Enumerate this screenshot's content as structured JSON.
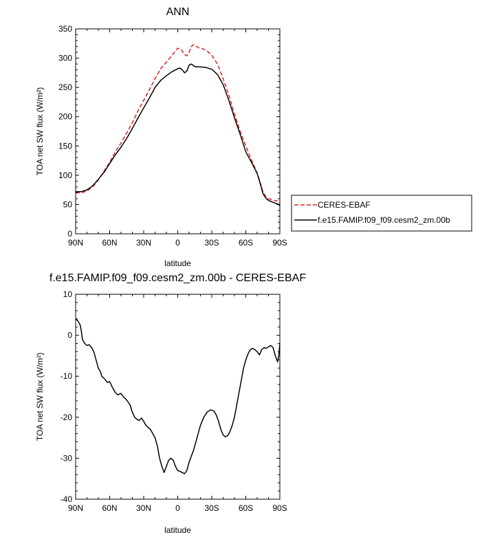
{
  "chart_data": [
    {
      "type": "line",
      "title": "ANN",
      "xlabel": "latitude",
      "ylabel": "TOA net SW flux (W/m²)",
      "xlim": [
        90,
        -90
      ],
      "ylim": [
        0,
        350
      ],
      "x_ticks": [
        90,
        60,
        30,
        0,
        -30,
        -60,
        -90
      ],
      "x_tick_labels": [
        "90N",
        "60N",
        "30N",
        "0",
        "30S",
        "60S",
        "90S"
      ],
      "y_ticks": [
        0,
        50,
        100,
        150,
        200,
        250,
        300,
        350
      ],
      "y_tick_labels": [
        "0",
        "50",
        "100",
        "150",
        "200",
        "250",
        "300",
        "350"
      ],
      "legend_position": "right, outside plot",
      "series": [
        {
          "name": "CERES-EBAF",
          "color": "#e02020",
          "dash": "dashed",
          "points": [
            [
              90,
              70
            ],
            [
              85,
              70
            ],
            [
              80,
              73
            ],
            [
              75,
              80
            ],
            [
              70,
              92
            ],
            [
              65,
              107
            ],
            [
              60,
              122
            ],
            [
              55,
              140
            ],
            [
              50,
              155
            ],
            [
              45,
              172
            ],
            [
              40,
              190
            ],
            [
              35,
              210
            ],
            [
              30,
              228
            ],
            [
              25,
              246
            ],
            [
              20,
              265
            ],
            [
              15,
              282
            ],
            [
              10,
              293
            ],
            [
              5,
              305
            ],
            [
              0,
              317
            ],
            [
              -3,
              315
            ],
            [
              -6,
              306
            ],
            [
              -8,
              304
            ],
            [
              -10,
              310
            ],
            [
              -12,
              320
            ],
            [
              -14,
              323
            ],
            [
              -16,
              321
            ],
            [
              -18,
              318
            ],
            [
              -22,
              316
            ],
            [
              -26,
              312
            ],
            [
              -30,
              305
            ],
            [
              -35,
              290
            ],
            [
              -40,
              265
            ],
            [
              -45,
              237
            ],
            [
              -50,
              205
            ],
            [
              -55,
              175
            ],
            [
              -60,
              150
            ],
            [
              -65,
              126
            ],
            [
              -70,
              104
            ],
            [
              -73,
              86
            ],
            [
              -75,
              72
            ],
            [
              -78,
              62
            ],
            [
              -80,
              60
            ],
            [
              -85,
              57
            ],
            [
              -88,
              56
            ],
            [
              -90,
              52
            ]
          ]
        },
        {
          "name": "f.e15.FAMIP.f09_f09.cesm2_zm.00b",
          "color": "#000000",
          "dash": "solid",
          "points": [
            [
              90,
              72
            ],
            [
              85,
              72
            ],
            [
              80,
              75
            ],
            [
              75,
              82
            ],
            [
              70,
              93
            ],
            [
              65,
              105
            ],
            [
              60,
              120
            ],
            [
              55,
              135
            ],
            [
              50,
              148
            ],
            [
              45,
              163
            ],
            [
              40,
              180
            ],
            [
              35,
              198
            ],
            [
              30,
              215
            ],
            [
              25,
              232
            ],
            [
              20,
              250
            ],
            [
              15,
              262
            ],
            [
              10,
              270
            ],
            [
              5,
              277
            ],
            [
              0,
              282
            ],
            [
              -2,
              283
            ],
            [
              -4,
              280
            ],
            [
              -6,
              275
            ],
            [
              -8,
              278
            ],
            [
              -10,
              288
            ],
            [
              -12,
              290
            ],
            [
              -14,
              287
            ],
            [
              -16,
              285
            ],
            [
              -20,
              285
            ],
            [
              -25,
              284
            ],
            [
              -30,
              281
            ],
            [
              -35,
              272
            ],
            [
              -40,
              255
            ],
            [
              -45,
              228
            ],
            [
              -50,
              198
            ],
            [
              -55,
              170
            ],
            [
              -60,
              140
            ],
            [
              -65,
              122
            ],
            [
              -70,
              103
            ],
            [
              -73,
              84
            ],
            [
              -75,
              69
            ],
            [
              -78,
              60
            ],
            [
              -80,
              57
            ],
            [
              -85,
              53
            ],
            [
              -88,
              51
            ],
            [
              -90,
              48
            ]
          ]
        }
      ]
    },
    {
      "type": "line",
      "title": "f.e15.FAMIP.f09_f09.cesm2_zm.00b - CERES-EBAF",
      "xlabel": "latitude",
      "ylabel": "TOA net SW flux (W/m²)",
      "xlim": [
        90,
        -90
      ],
      "ylim": [
        -40,
        10
      ],
      "x_ticks": [
        90,
        60,
        30,
        0,
        -30,
        -60,
        -90
      ],
      "x_tick_labels": [
        "90N",
        "60N",
        "30N",
        "0",
        "30S",
        "60S",
        "90S"
      ],
      "y_ticks": [
        -40,
        -30,
        -20,
        -10,
        0,
        10
      ],
      "y_tick_labels": [
        "-40",
        "-30",
        "-20",
        "-10",
        "0",
        "10"
      ],
      "series": [
        {
          "name": "",
          "color": "#000000",
          "dash": "solid",
          "points": [
            [
              90,
              4
            ],
            [
              88,
              3.5
            ],
            [
              86,
              2.5
            ],
            [
              85,
              1
            ],
            [
              84,
              -1
            ],
            [
              82,
              -2
            ],
            [
              80,
              -2.5
            ],
            [
              78,
              -2.3
            ],
            [
              76,
              -3
            ],
            [
              74,
              -4
            ],
            [
              73,
              -5
            ],
            [
              72,
              -6
            ],
            [
              70,
              -8
            ],
            [
              68,
              -9
            ],
            [
              67,
              -10
            ],
            [
              65,
              -10.5
            ],
            [
              62,
              -11.5
            ],
            [
              60,
              -11.3
            ],
            [
              58,
              -12.5
            ],
            [
              55,
              -14
            ],
            [
              53,
              -14.5
            ],
            [
              50,
              -14.2
            ],
            [
              48,
              -15
            ],
            [
              46,
              -15.5
            ],
            [
              44,
              -16.2
            ],
            [
              42,
              -17
            ],
            [
              40,
              -18.8
            ],
            [
              38,
              -20
            ],
            [
              36,
              -20.5
            ],
            [
              34,
              -20.8
            ],
            [
              32,
              -20.2
            ],
            [
              30,
              -21
            ],
            [
              28,
              -22
            ],
            [
              26,
              -22.5
            ],
            [
              24,
              -23
            ],
            [
              22,
              -24
            ],
            [
              20,
              -25
            ],
            [
              18,
              -27
            ],
            [
              16,
              -30
            ],
            [
              14,
              -32
            ],
            [
              12,
              -33.5
            ],
            [
              10,
              -32
            ],
            [
              8,
              -30.5
            ],
            [
              6,
              -30
            ],
            [
              4,
              -30.5
            ],
            [
              2,
              -32
            ],
            [
              0,
              -33
            ],
            [
              -2,
              -33.2
            ],
            [
              -4,
              -33.5
            ],
            [
              -6,
              -33.8
            ],
            [
              -8,
              -33
            ],
            [
              -10,
              -31
            ],
            [
              -12,
              -29.5
            ],
            [
              -14,
              -28
            ],
            [
              -16,
              -26
            ],
            [
              -18,
              -24
            ],
            [
              -20,
              -22
            ],
            [
              -23,
              -20
            ],
            [
              -26,
              -18.7
            ],
            [
              -29,
              -18.2
            ],
            [
              -32,
              -18.5
            ],
            [
              -34,
              -19.5
            ],
            [
              -36,
              -21
            ],
            [
              -38,
              -23
            ],
            [
              -40,
              -24.3
            ],
            [
              -42,
              -24.8
            ],
            [
              -44,
              -24.5
            ],
            [
              -46,
              -23.5
            ],
            [
              -48,
              -22
            ],
            [
              -50,
              -20
            ],
            [
              -52,
              -17
            ],
            [
              -54,
              -14
            ],
            [
              -56,
              -11
            ],
            [
              -58,
              -8
            ],
            [
              -60,
              -6
            ],
            [
              -62,
              -4.5
            ],
            [
              -64,
              -3.5
            ],
            [
              -66,
              -3.2
            ],
            [
              -68,
              -3.5
            ],
            [
              -70,
              -4
            ],
            [
              -72,
              -4.8
            ],
            [
              -74,
              -3.5
            ],
            [
              -76,
              -3
            ],
            [
              -78,
              -3.2
            ],
            [
              -80,
              -2.8
            ],
            [
              -82,
              -2.5
            ],
            [
              -84,
              -3
            ],
            [
              -86,
              -5
            ],
            [
              -88,
              -6.5
            ],
            [
              -89,
              -5
            ],
            [
              -90,
              -2
            ]
          ]
        }
      ]
    }
  ]
}
